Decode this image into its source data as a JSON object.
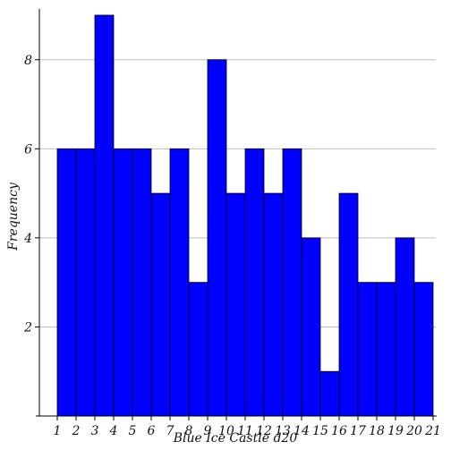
{
  "chart_data": {
    "type": "bar",
    "xlabel": "Blue Ice Castle d20",
    "ylabel": "Frequency",
    "categories": [
      "1",
      "2",
      "3",
      "4",
      "5",
      "6",
      "7",
      "8",
      "9",
      "10",
      "11",
      "12",
      "13",
      "14",
      "15",
      "16",
      "17",
      "18",
      "19",
      "20"
    ],
    "x_ticks": [
      "1",
      "2",
      "3",
      "4",
      "5",
      "6",
      "7",
      "8",
      "9",
      "10",
      "11",
      "12",
      "13",
      "14",
      "15",
      "16",
      "17",
      "18",
      "19",
      "20",
      "21"
    ],
    "values": [
      6,
      6,
      9,
      6,
      6,
      5,
      6,
      3,
      8,
      5,
      6,
      5,
      6,
      4,
      1,
      5,
      3,
      3,
      4,
      3
    ],
    "y_ticks": [
      "2",
      "4",
      "6",
      "8"
    ],
    "ylim": [
      0,
      9.1
    ],
    "grid": true,
    "bar_color": "#0000ff",
    "edge_color": "#000000",
    "grid_color": "#bfbfbf"
  }
}
